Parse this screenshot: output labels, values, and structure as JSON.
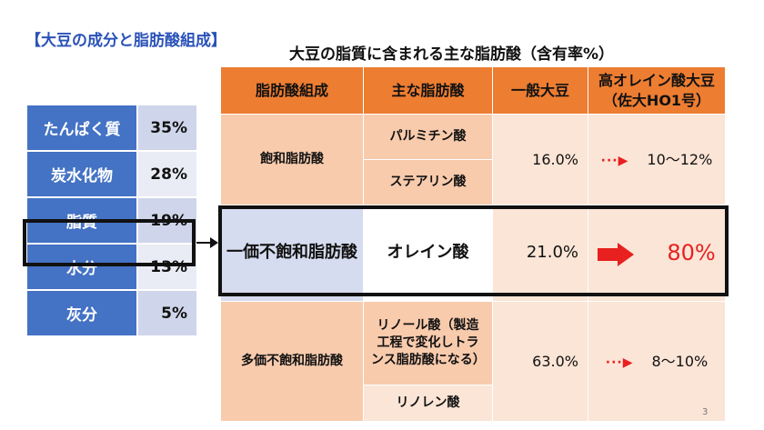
{
  "heading": "【大豆の成分と脂肪酸組成】",
  "title": "大豆の脂質に含まれる主な脂肪酸（含有率%）",
  "composition": [
    {
      "name": "たんぱく質",
      "value": "35%"
    },
    {
      "name": "炭水化物",
      "value": "28%"
    },
    {
      "name": "脂質",
      "value": "19%"
    },
    {
      "name": "水分",
      "value": "13%"
    },
    {
      "name": "灰分",
      "value": "5%"
    }
  ],
  "fatty_acid_table": {
    "headers": {
      "composition": "脂肪酸組成",
      "main_acid": "主な脂肪酸",
      "general": "一般大豆",
      "high_oleic": "高オレイン酸大豆（佐大HO1号）"
    },
    "saturated": {
      "category": "飽和脂肪酸",
      "acids": [
        "パルミチン酸",
        "ステアリン酸"
      ],
      "general": "16.0%",
      "high_oleic": "10～12%"
    },
    "monounsaturated": {
      "category": "一価不飽和脂肪酸",
      "acid": "オレイン酸",
      "general": "21.0%",
      "high_oleic": "80%"
    },
    "polyunsaturated": {
      "category": "多価不飽和脂肪酸",
      "acids": [
        "リノール酸（製造工程で変化しトランス脂肪酸になる）",
        "リノレン酸"
      ],
      "general": "63.0%",
      "high_oleic": "8～10%"
    }
  },
  "page_number": "3",
  "colors": {
    "blue_header": "#4472c4",
    "orange_header": "#ed7d31",
    "accent_red": "#e8201f",
    "heading_blue": "#2a52b8"
  },
  "icons": {
    "small_arrow": "dotted-arrow-icon",
    "big_arrow": "block-arrow-icon",
    "link_arrow": "connector-arrow-icon"
  }
}
